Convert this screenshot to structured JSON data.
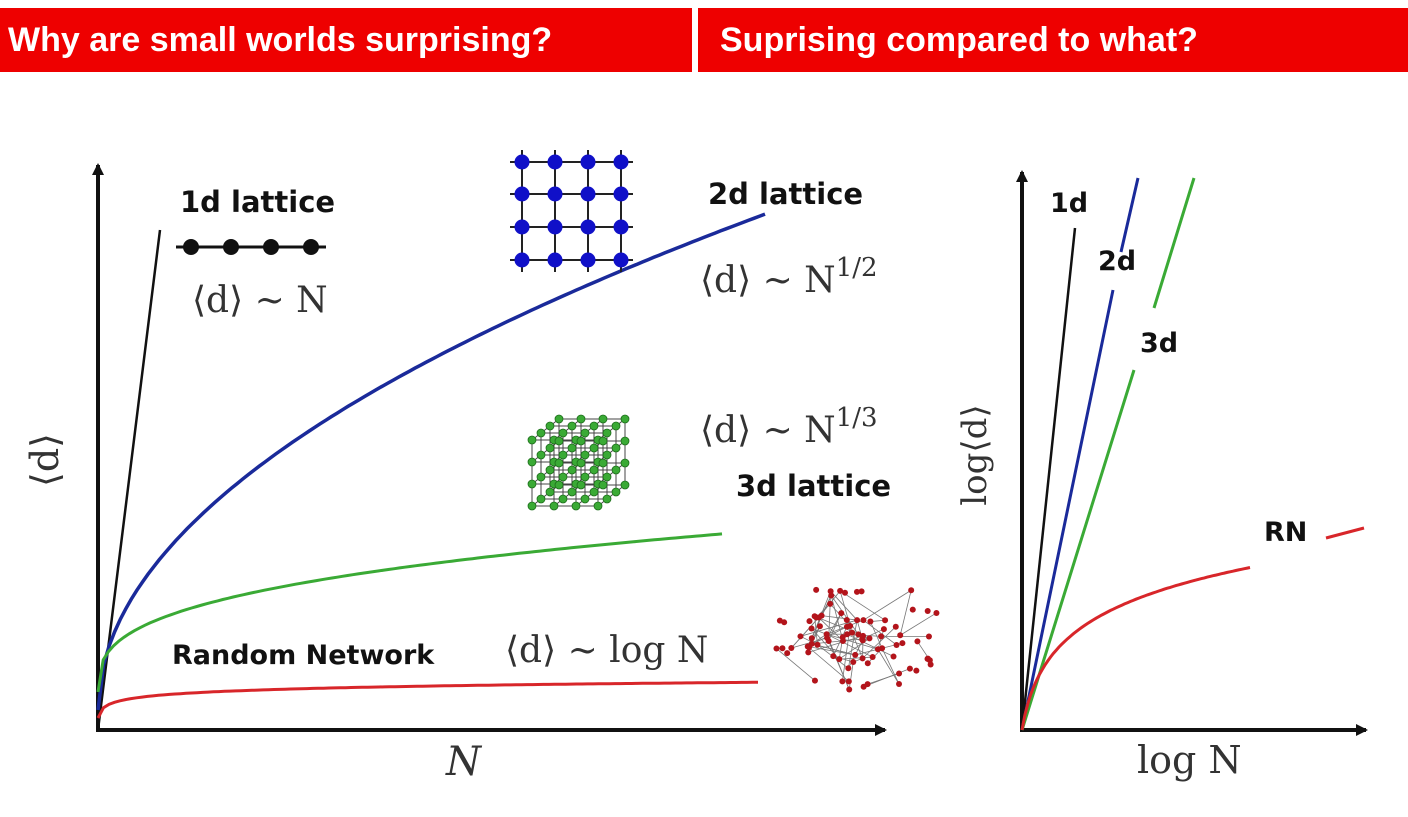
{
  "header": {
    "left_title": "Why are small worlds surprising?",
    "right_title": "Suprising compared to what?"
  },
  "colors": {
    "header_bg": "#ee0000",
    "header_text": "#ffffff",
    "lattice_1d": "#111111",
    "lattice_2d": "#1a2a9a",
    "lattice_3d": "#3aaa35",
    "random_network": "#d8262a"
  },
  "chart_data": [
    {
      "type": "line",
      "xlabel": "N",
      "ylabel": "⟨d⟩",
      "grid": false,
      "series": [
        {
          "name": "1d lattice",
          "formula": "⟨d⟩ ~ N",
          "color": "#111111"
        },
        {
          "name": "2d lattice",
          "formula": "⟨d⟩ ~ N^1/2",
          "color": "#1a2a9a"
        },
        {
          "name": "3d lattice",
          "formula": "⟨d⟩ ~ N^1/3",
          "color": "#3aaa35"
        },
        {
          "name": "Random Network",
          "formula": "⟨d⟩ ~ log N",
          "color": "#d8262a"
        }
      ]
    },
    {
      "type": "line",
      "xlabel": "log N",
      "ylabel": "log⟨d⟩",
      "grid": false,
      "series": [
        {
          "name": "1d",
          "color": "#111111"
        },
        {
          "name": "2d",
          "color": "#1a2a9a"
        },
        {
          "name": "3d",
          "color": "#3aaa35"
        },
        {
          "name": "RN",
          "color": "#d8262a"
        }
      ]
    }
  ],
  "labels": {
    "f_1d": "⟨d⟩ ~ N",
    "f_2d_base": "⟨d⟩ ~ N",
    "f_2d_exp": "1/2",
    "f_3d_base": "⟨d⟩ ~ N",
    "f_3d_exp": "1/3",
    "f_rn": "⟨d⟩ ~ log N"
  },
  "icons": [
    "1d-lattice-icon",
    "2d-lattice-icon",
    "3d-lattice-icon",
    "random-network-icon"
  ]
}
